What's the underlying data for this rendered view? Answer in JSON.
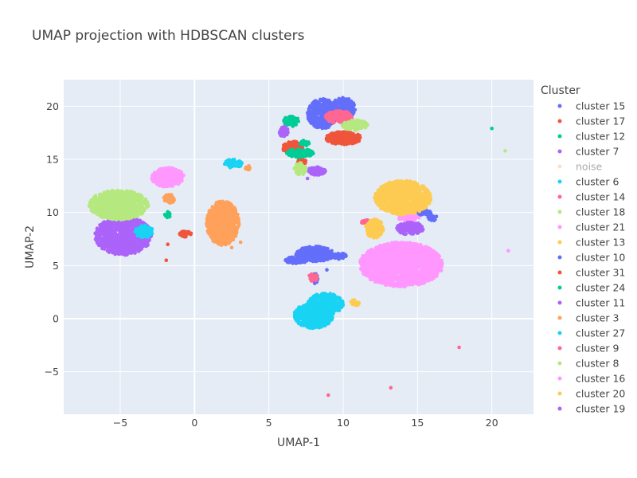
{
  "chart_data": {
    "type": "scatter",
    "title": "UMAP projection with HDBSCAN clusters",
    "xlabel": "UMAP-1",
    "ylabel": "UMAP-2",
    "xlim": [
      -8.8,
      22.8
    ],
    "ylim": [
      -9,
      22.5
    ],
    "xticks": [
      -5,
      0,
      5,
      10,
      15,
      20
    ],
    "yticks": [
      -5,
      0,
      5,
      10,
      15,
      20
    ],
    "tick_labels_x": [
      "−5",
      "0",
      "5",
      "10",
      "15",
      "20"
    ],
    "tick_labels_y": [
      "−5",
      "0",
      "5",
      "10",
      "15",
      "20"
    ],
    "grid": true,
    "zero_lines": true,
    "legend_title": "Cluster",
    "legend_position": "right",
    "series": [
      {
        "name": "cluster 15",
        "color": "#636efa",
        "blobs": [
          [
            8.6,
            19.3,
            1.0,
            1.4
          ],
          [
            10.0,
            19.8,
            0.8,
            1.0
          ],
          [
            8.1,
            6.1,
            1.3,
            0.7
          ],
          [
            6.8,
            5.5,
            0.8,
            0.3
          ],
          [
            9.7,
            5.9,
            0.5,
            0.3
          ],
          [
            8.1,
            3.8,
            0.2,
            0.5
          ],
          [
            15.0,
            10.0,
            1.0,
            0.3
          ],
          [
            16.0,
            9.5,
            0.3,
            0.3
          ]
        ],
        "points": [
          [
            8.9,
            4.6
          ]
        ]
      },
      {
        "name": "cluster 17",
        "color": "#EF553B",
        "blobs": [
          [
            10.0,
            17.0,
            1.2,
            0.6
          ],
          [
            6.6,
            16.1,
            0.7,
            0.6
          ],
          [
            -0.6,
            8.0,
            0.4,
            0.3
          ],
          [
            7.2,
            14.8,
            0.3,
            0.3
          ]
        ],
        "points": [
          [
            -1.8,
            7.0
          ],
          [
            -1.9,
            5.5
          ]
        ]
      },
      {
        "name": "cluster 12",
        "color": "#00cc96",
        "blobs": [
          [
            6.5,
            18.6,
            0.5,
            0.5
          ],
          [
            7.1,
            15.6,
            0.9,
            0.4
          ],
          [
            7.4,
            16.5,
            0.3,
            0.3
          ],
          [
            -1.8,
            9.8,
            0.2,
            0.3
          ]
        ],
        "points": [
          [
            20.0,
            17.9
          ]
        ]
      },
      {
        "name": "cluster 7",
        "color": "#ab63fa",
        "blobs": [
          [
            6.0,
            17.6,
            0.3,
            0.5
          ],
          [
            8.2,
            13.9,
            0.6,
            0.4
          ],
          [
            -4.8,
            7.8,
            1.9,
            1.8
          ]
        ],
        "points": [
          [
            7.6,
            13.2
          ]
        ]
      },
      {
        "name": "noise",
        "color": "#FFA15A",
        "blobs": [],
        "points": []
      },
      {
        "name": "cluster 6",
        "color": "#19d3f3",
        "blobs": [
          [
            2.6,
            14.6,
            0.6,
            0.4
          ],
          [
            -3.4,
            8.2,
            0.6,
            0.6
          ],
          [
            8.8,
            1.4,
            1.2,
            1.0
          ],
          [
            8.0,
            0.3,
            1.3,
            1.2
          ]
        ],
        "points": []
      },
      {
        "name": "cluster 14",
        "color": "#FF6692",
        "blobs": [
          [
            9.7,
            19.0,
            0.9,
            0.6
          ],
          [
            8.0,
            3.9,
            0.3,
            0.4
          ],
          [
            11.6,
            9.1,
            0.4,
            0.2
          ]
        ],
        "points": [
          [
            13.2,
            -6.5
          ],
          [
            17.8,
            -2.7
          ],
          [
            9.0,
            -7.2
          ]
        ]
      },
      {
        "name": "cluster 18",
        "color": "#B6E880",
        "blobs": [
          [
            -5.1,
            10.7,
            2.0,
            1.4
          ],
          [
            10.8,
            18.2,
            0.9,
            0.5
          ],
          [
            7.1,
            14.1,
            0.4,
            0.6
          ]
        ],
        "points": [
          [
            20.9,
            15.8
          ]
        ]
      },
      {
        "name": "cluster 21",
        "color": "#FF97FF",
        "blobs": [
          [
            13.9,
            5.1,
            2.8,
            2.1
          ],
          [
            -1.8,
            13.3,
            1.1,
            0.9
          ],
          [
            14.4,
            9.5,
            0.7,
            0.3
          ]
        ],
        "points": [
          [
            21.1,
            6.4
          ]
        ]
      },
      {
        "name": "cluster 13",
        "color": "#FECB52",
        "blobs": [
          [
            14.0,
            11.4,
            1.9,
            1.6
          ],
          [
            12.1,
            8.5,
            0.6,
            0.9
          ],
          [
            10.8,
            1.5,
            0.3,
            0.3
          ]
        ],
        "points": []
      },
      {
        "name": "cluster 10",
        "color": "#636efa",
        "blobs": [],
        "points": []
      },
      {
        "name": "cluster 31",
        "color": "#EF553B",
        "blobs": [],
        "points": []
      },
      {
        "name": "cluster 24",
        "color": "#00cc96",
        "blobs": [],
        "points": []
      },
      {
        "name": "cluster 11",
        "color": "#ab63fa",
        "blobs": [
          [
            14.5,
            8.5,
            0.9,
            0.6
          ]
        ],
        "points": []
      },
      {
        "name": "cluster 3",
        "color": "#FFA15A",
        "blobs": [
          [
            1.9,
            9.0,
            1.1,
            2.1
          ],
          [
            -1.7,
            11.3,
            0.4,
            0.4
          ],
          [
            3.6,
            14.2,
            0.2,
            0.2
          ]
        ],
        "points": [
          [
            2.5,
            6.7
          ],
          [
            3.1,
            7.2
          ]
        ]
      },
      {
        "name": "cluster 27",
        "color": "#19d3f3",
        "blobs": [],
        "points": []
      },
      {
        "name": "cluster 9",
        "color": "#FF6692",
        "blobs": [],
        "points": []
      },
      {
        "name": "cluster 8",
        "color": "#B6E880",
        "blobs": [],
        "points": []
      },
      {
        "name": "cluster 16",
        "color": "#FF97FF",
        "blobs": [],
        "points": []
      },
      {
        "name": "cluster 20",
        "color": "#FECB52",
        "blobs": [],
        "points": []
      },
      {
        "name": "cluster 19",
        "color": "#ab63fa",
        "blobs": [],
        "points": []
      }
    ]
  }
}
